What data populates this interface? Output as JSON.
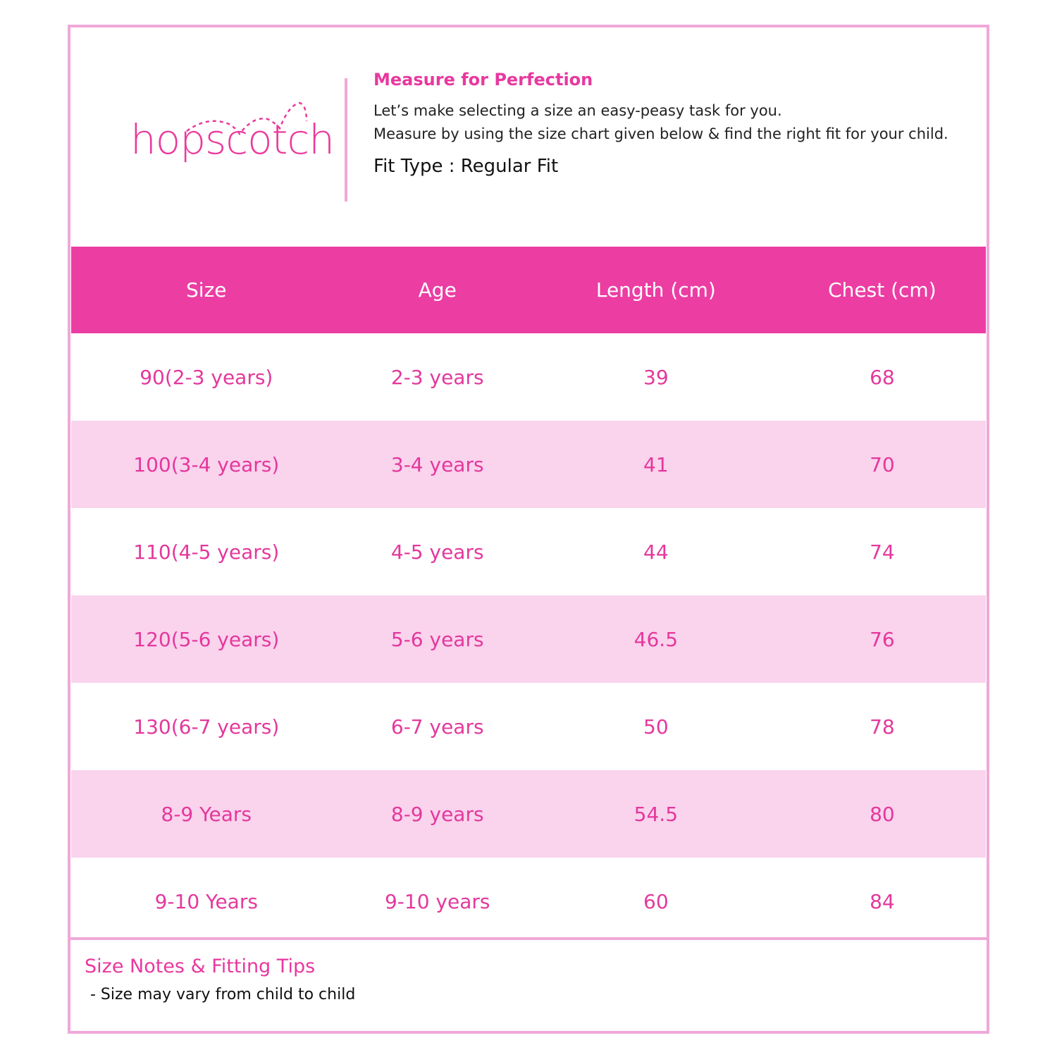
{
  "brand": {
    "logo_text": "hopscotch",
    "accent": "#ec3da3",
    "border": "#f0a8d8",
    "row_alt": "#fad3ed"
  },
  "intro": {
    "title": "Measure for Perfection",
    "line1": "Let’s make selecting a size an easy-peasy task for you.",
    "line2": "Measure by using the size chart given below & find the right fit for your child.",
    "fit_type": "Fit Type : Regular Fit"
  },
  "table": {
    "headers": [
      "Size",
      "Age",
      "Length (cm)",
      "Chest (cm)"
    ],
    "rows": [
      [
        "90(2-3 years)",
        "2-3 years",
        "39",
        "68"
      ],
      [
        "100(3-4 years)",
        "3-4 years",
        "41",
        "70"
      ],
      [
        "110(4-5 years)",
        "4-5 years",
        "44",
        "74"
      ],
      [
        "120(5-6 years)",
        "5-6 years",
        "46.5",
        "76"
      ],
      [
        "130(6-7 years)",
        "6-7 years",
        "50",
        "78"
      ],
      [
        "8-9 Years",
        "8-9 years",
        "54.5",
        "80"
      ],
      [
        "9-10 Years",
        "9-10 years",
        "60",
        "84"
      ]
    ]
  },
  "notes": {
    "title": "Size Notes & Fitting Tips",
    "items": [
      "- Size may vary from child to child"
    ]
  }
}
